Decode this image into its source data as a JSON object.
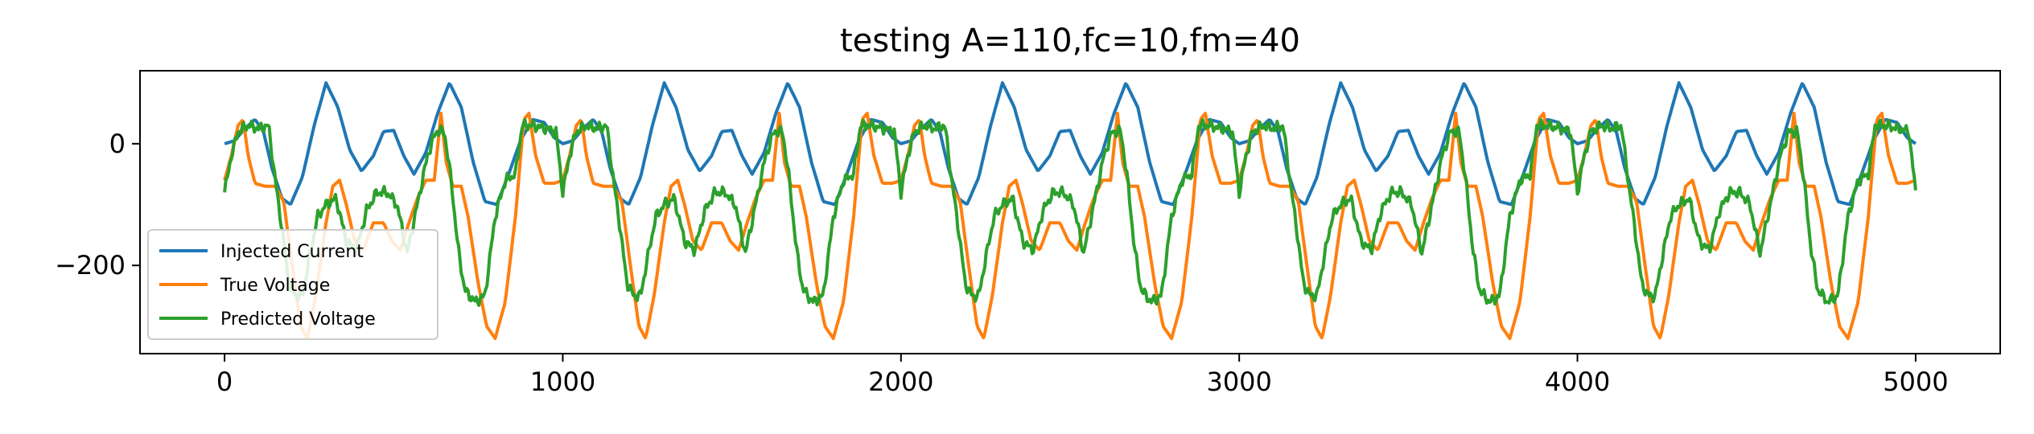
{
  "chart_data": {
    "type": "line",
    "title": "testing A=110,fc=10,fm=40",
    "xlabel": "",
    "ylabel": "",
    "xlim": [
      -250,
      5250
    ],
    "ylim": [
      -345,
      120
    ],
    "xticks": [
      0,
      1000,
      2000,
      3000,
      4000,
      5000
    ],
    "xtick_labels": [
      "0",
      "1000",
      "2000",
      "3000",
      "4000",
      "5000"
    ],
    "yticks": [
      0,
      -200
    ],
    "ytick_labels": [
      "0",
      "−200"
    ],
    "grid": false,
    "legend_position": "lower-left",
    "x_range": [
      0,
      5000
    ],
    "series": [
      {
        "name": "Injected Current",
        "color": "#1f77b4",
        "description_model": "periodic, period 1000",
        "cycle_points": [
          [
            0,
            0
          ],
          [
            30,
            5
          ],
          [
            60,
            25
          ],
          [
            90,
            40
          ],
          [
            115,
            20
          ],
          [
            140,
            -40
          ],
          [
            170,
            -90
          ],
          [
            195,
            -100
          ],
          [
            230,
            -55
          ],
          [
            265,
            30
          ],
          [
            300,
            100
          ],
          [
            335,
            60
          ],
          [
            370,
            -10
          ],
          [
            405,
            -45
          ],
          [
            440,
            -20
          ],
          [
            470,
            20
          ],
          [
            500,
            22
          ],
          [
            530,
            -20
          ],
          [
            560,
            -50
          ],
          [
            595,
            -15
          ],
          [
            630,
            50
          ],
          [
            665,
            100
          ],
          [
            700,
            60
          ],
          [
            735,
            -30
          ],
          [
            770,
            -95
          ],
          [
            805,
            -100
          ],
          [
            840,
            -50
          ],
          [
            875,
            5
          ],
          [
            910,
            40
          ],
          [
            945,
            35
          ],
          [
            975,
            10
          ],
          [
            1000,
            0
          ]
        ]
      },
      {
        "name": "True Voltage",
        "color": "#ff7f0e",
        "description_model": "periodic, period 1000",
        "cycle_points": [
          [
            0,
            -60
          ],
          [
            20,
            -20
          ],
          [
            40,
            30
          ],
          [
            55,
            40
          ],
          [
            70,
            -20
          ],
          [
            90,
            -65
          ],
          [
            120,
            -70
          ],
          [
            150,
            -70
          ],
          [
            175,
            -95
          ],
          [
            200,
            -200
          ],
          [
            225,
            -300
          ],
          [
            245,
            -320
          ],
          [
            270,
            -250
          ],
          [
            300,
            -130
          ],
          [
            320,
            -70
          ],
          [
            340,
            -60
          ],
          [
            360,
            -100
          ],
          [
            385,
            -160
          ],
          [
            410,
            -175
          ],
          [
            440,
            -130
          ],
          [
            470,
            -130
          ],
          [
            495,
            -160
          ],
          [
            520,
            -175
          ],
          [
            545,
            -130
          ],
          [
            570,
            -90
          ],
          [
            595,
            -60
          ],
          [
            620,
            -60
          ],
          [
            640,
            50
          ],
          [
            655,
            -30
          ],
          [
            675,
            -70
          ],
          [
            700,
            -70
          ],
          [
            720,
            -120
          ],
          [
            750,
            -230
          ],
          [
            775,
            -300
          ],
          [
            800,
            -320
          ],
          [
            830,
            -260
          ],
          [
            860,
            -120
          ],
          [
            885,
            40
          ],
          [
            900,
            50
          ],
          [
            920,
            -20
          ],
          [
            945,
            -65
          ],
          [
            975,
            -65
          ],
          [
            1000,
            -60
          ]
        ]
      },
      {
        "name": "Predicted Voltage",
        "color": "#2ca02c",
        "description_model": "periodic, period 1000, noisy",
        "cycle_points": [
          [
            0,
            -80
          ],
          [
            20,
            -20
          ],
          [
            40,
            20
          ],
          [
            70,
            30
          ],
          [
            100,
            25
          ],
          [
            130,
            30
          ],
          [
            150,
            -60
          ],
          [
            170,
            -140
          ],
          [
            190,
            -230
          ],
          [
            210,
            -250
          ],
          [
            230,
            -250
          ],
          [
            250,
            -190
          ],
          [
            275,
            -120
          ],
          [
            300,
            -100
          ],
          [
            330,
            -90
          ],
          [
            360,
            -160
          ],
          [
            390,
            -175
          ],
          [
            420,
            -110
          ],
          [
            450,
            -80
          ],
          [
            480,
            -80
          ],
          [
            510,
            -100
          ],
          [
            540,
            -180
          ],
          [
            570,
            -100
          ],
          [
            600,
            -20
          ],
          [
            625,
            20
          ],
          [
            650,
            20
          ],
          [
            670,
            -60
          ],
          [
            690,
            -170
          ],
          [
            710,
            -240
          ],
          [
            740,
            -260
          ],
          [
            770,
            -250
          ],
          [
            800,
            -120
          ],
          [
            830,
            -60
          ],
          [
            860,
            -50
          ],
          [
            880,
            30
          ],
          [
            910,
            30
          ],
          [
            950,
            25
          ],
          [
            980,
            20
          ],
          [
            1000,
            -80
          ]
        ]
      }
    ]
  }
}
